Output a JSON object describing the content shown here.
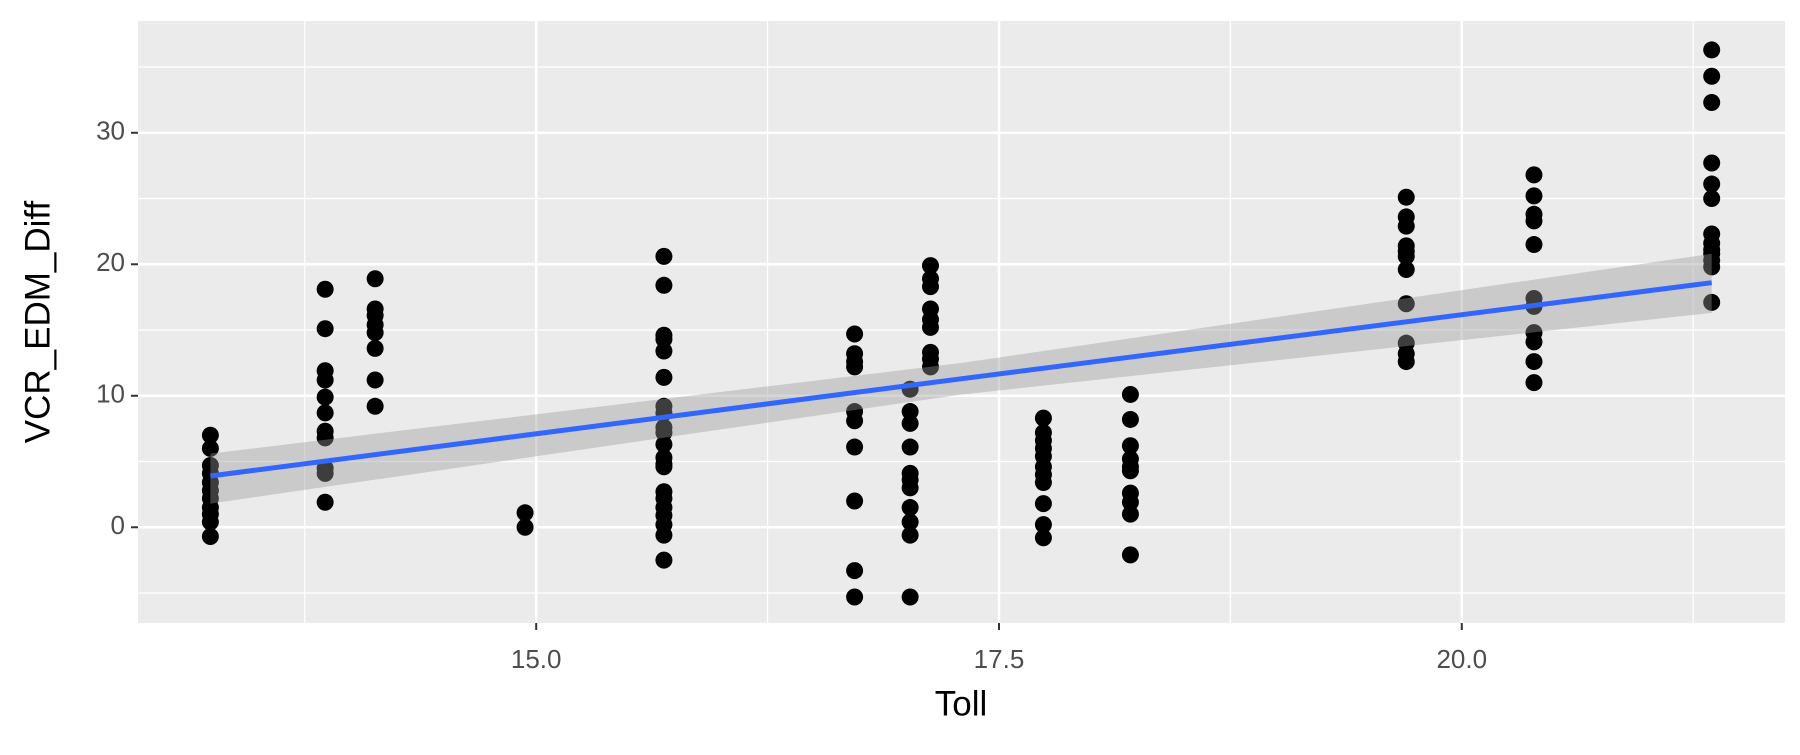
{
  "chart_data": {
    "type": "scatter",
    "x_label": "Toll",
    "y_label": "VCR_EDM_Diff",
    "xlim": [
      12.849,
      21.746
    ],
    "ylim": [
      -7.28,
      38.5
    ],
    "xticks": [
      {
        "value": 15,
        "label": "15.0"
      },
      {
        "value": 17.5,
        "label": "17.5"
      },
      {
        "value": 20,
        "label": "20.0"
      }
    ],
    "yticks": [
      0,
      10,
      20,
      30
    ],
    "x_minor_breaks": [
      13.75,
      16.25,
      18.75,
      21.25
    ],
    "y_minor_breaks": [
      -5,
      5,
      15,
      25,
      35
    ],
    "grid": true,
    "point_color": "#000000",
    "line_color": "#3366ff",
    "band_color": "#999999",
    "x": [
      13.24,
      13.24,
      13.24,
      13.24,
      13.24,
      13.24,
      13.24,
      13.24,
      13.24,
      13.24,
      13.24,
      13.86,
      13.86,
      13.86,
      13.86,
      13.86,
      13.86,
      13.86,
      13.86,
      13.86,
      13.86,
      13.86,
      14.13,
      14.13,
      14.13,
      14.13,
      14.13,
      14.13,
      14.13,
      14.13,
      14.94,
      14.94,
      15.69,
      15.69,
      15.69,
      15.69,
      15.69,
      15.69,
      15.69,
      15.69,
      15.69,
      15.69,
      15.69,
      15.69,
      15.69,
      15.69,
      15.69,
      15.69,
      15.69,
      15.69,
      15.69,
      15.69,
      15.69,
      16.72,
      16.72,
      16.72,
      16.72,
      16.72,
      16.72,
      16.72,
      16.72,
      16.72,
      16.72,
      17.02,
      17.02,
      17.02,
      17.02,
      17.02,
      17.02,
      17.02,
      17.02,
      17.02,
      17.02,
      17.02,
      17.13,
      17.13,
      17.13,
      17.13,
      17.13,
      17.13,
      17.13,
      17.13,
      17.13,
      17.74,
      17.74,
      17.74,
      17.74,
      17.74,
      17.74,
      17.74,
      17.74,
      17.74,
      17.74,
      17.74,
      18.21,
      18.21,
      18.21,
      18.21,
      18.21,
      18.21,
      18.21,
      18.21,
      18.21,
      18.21,
      19.7,
      19.7,
      19.7,
      19.7,
      19.7,
      19.7,
      19.7,
      19.7,
      19.7,
      19.7,
      19.7,
      20.39,
      20.39,
      20.39,
      20.39,
      20.39,
      20.39,
      20.39,
      20.39,
      20.39,
      20.39,
      20.39,
      21.35,
      21.35,
      21.35,
      21.35,
      21.35,
      21.35,
      21.35,
      21.35,
      21.35,
      21.35,
      21.35,
      21.35,
      21.35
    ],
    "y": [
      7.0,
      6.0,
      4.7,
      4.1,
      3.4,
      2.8,
      2.2,
      1.5,
      1.0,
      0.4,
      -0.7,
      18.1,
      15.1,
      11.9,
      11.2,
      9.9,
      8.7,
      7.3,
      6.8,
      4.5,
      4.1,
      1.9,
      18.9,
      16.6,
      16.1,
      15.4,
      14.8,
      13.6,
      11.2,
      9.2,
      1.1,
      0,
      20.6,
      18.4,
      14.6,
      14.3,
      13.4,
      11.4,
      9.2,
      8.7,
      7.6,
      7.2,
      6.3,
      5.3,
      4.8,
      4.6,
      2.7,
      2.2,
      1.5,
      0.9,
      0.2,
      -0.6,
      -2.5,
      14.7,
      13.2,
      12.6,
      12.2,
      8.8,
      8.1,
      6.1,
      2.0,
      -3.3,
      -5.3,
      10.5,
      8.8,
      7.9,
      6.1,
      4.1,
      3.6,
      3.0,
      1.5,
      0.4,
      -0.6,
      -5.3,
      19.9,
      18.9,
      18.3,
      16.6,
      15.8,
      15.2,
      13.3,
      12.8,
      12.2,
      8.3,
      7.2,
      6.6,
      6.0,
      5.4,
      4.6,
      4.0,
      3.4,
      1.8,
      0.2,
      -0.8,
      10.1,
      8.2,
      6.2,
      5.2,
      4.6,
      4.3,
      2.6,
      1.9,
      1.0,
      -2.1,
      25.1,
      23.6,
      22.9,
      21.4,
      21.0,
      20.6,
      19.6,
      17.0,
      14.0,
      13.2,
      12.6,
      26.8,
      25.2,
      23.8,
      23.3,
      21.5,
      17.4,
      16.8,
      14.8,
      14.1,
      12.6,
      11.0,
      36.3,
      34.3,
      32.3,
      27.7,
      26.1,
      25.0,
      22.3,
      21.6,
      21.1,
      20.8,
      20.3,
      19.8,
      17.1
    ],
    "smooth": {
      "x": [
        13.24,
        17.3,
        21.35
      ],
      "y": [
        3.9,
        11.3,
        18.6
      ],
      "ymin": [
        1.8,
        10.1,
        16.3
      ],
      "ymax": [
        5.6,
        12.5,
        20.8
      ]
    }
  }
}
